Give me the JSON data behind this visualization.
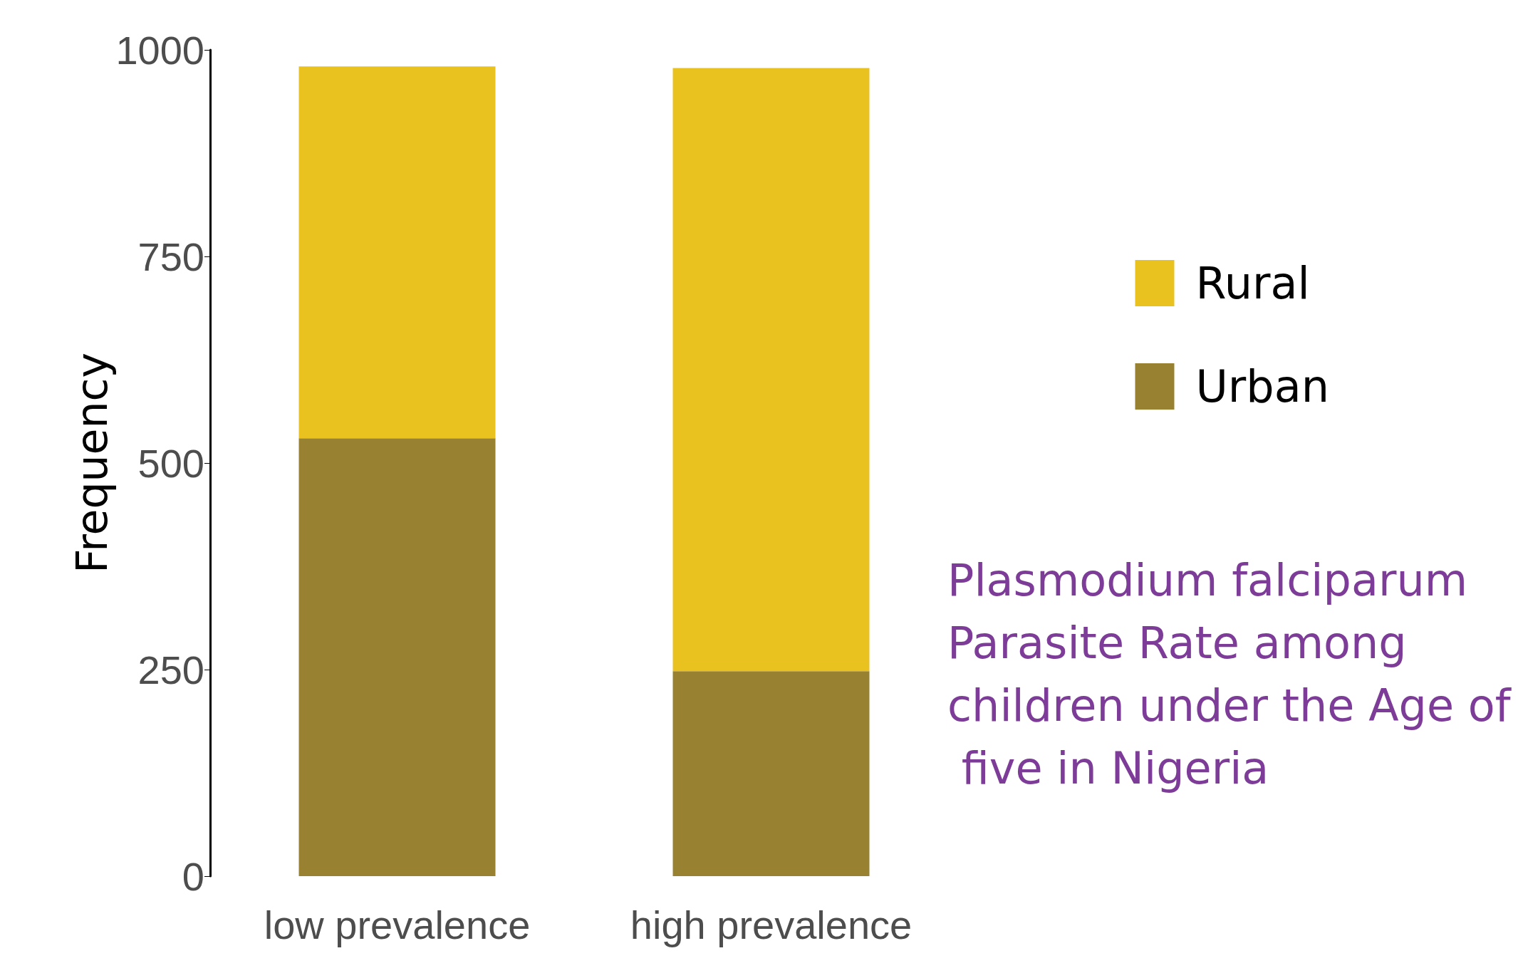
{
  "chart_data": {
    "type": "bar",
    "stacked": true,
    "ylabel": "Frequency",
    "categories": [
      "low prevalence",
      "high prevalence"
    ],
    "series": [
      {
        "name": "Urban",
        "color": "#988130",
        "values": [
          530,
          248
        ]
      },
      {
        "name": "Rural",
        "color": "#e9c21f",
        "values": [
          450,
          730
        ]
      }
    ],
    "ylim": [
      0,
      1000
    ],
    "yticks": [
      0,
      250,
      500,
      750,
      1000
    ],
    "grid": false,
    "legend": "right",
    "annotations": [
      "Plasmodium falciparum Parasite Rate among children under the Age of five in Nigeria"
    ]
  }
}
